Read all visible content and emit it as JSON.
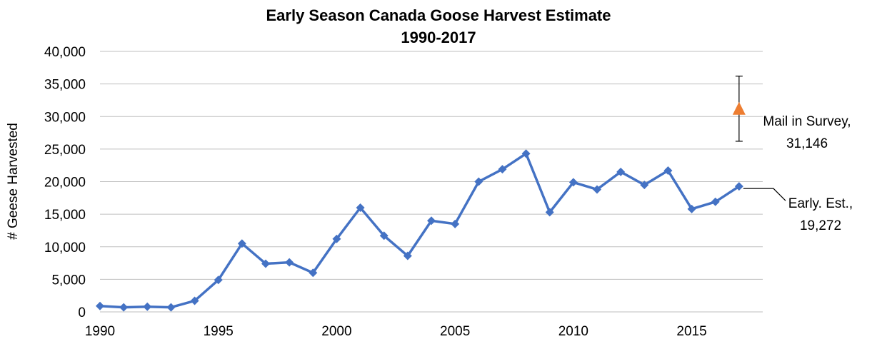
{
  "chart_data": {
    "type": "line",
    "title": "Early Season Canada Goose Harvest Estimate",
    "subtitle": "1990-2017",
    "ylabel": "# Geese Harvested",
    "xlabel": "",
    "xlim": [
      1990,
      2018
    ],
    "ylim": [
      0,
      40000
    ],
    "x_ticks": [
      1990,
      1995,
      2000,
      2005,
      2010,
      2015
    ],
    "x_tick_labels": [
      "1990",
      "1995",
      "2000",
      "2005",
      "2010",
      "2015"
    ],
    "y_ticks": [
      0,
      5000,
      10000,
      15000,
      20000,
      25000,
      30000,
      35000,
      40000
    ],
    "y_tick_labels": [
      "0",
      "5,000",
      "10,000",
      "15,000",
      "20,000",
      "25,000",
      "30,000",
      "35,000",
      "40,000"
    ],
    "grid": "horizontal",
    "series": [
      {
        "color": "#4472c4",
        "marker": "diamond",
        "x": [
          1990,
          1991,
          1992,
          1993,
          1994,
          1995,
          1996,
          1997,
          1998,
          1999,
          2000,
          2001,
          2002,
          2003,
          2004,
          2005,
          2006,
          2007,
          2008,
          2009,
          2010,
          2011,
          2012,
          2013,
          2014,
          2015,
          2016,
          2017
        ],
        "y": [
          900,
          700,
          800,
          700,
          1700,
          4900,
          10500,
          7400,
          7600,
          6000,
          11200,
          16000,
          11700,
          8600,
          14000,
          13500,
          20000,
          21900,
          24300,
          15300,
          19900,
          18800,
          21500,
          19500,
          21700,
          15800,
          16900,
          19272
        ]
      },
      {
        "color": "#ed7d31",
        "marker": "triangle",
        "x": [
          2017
        ],
        "y": [
          31146
        ],
        "error_low": [
          26200
        ],
        "error_high": [
          36200
        ]
      }
    ],
    "annotations": [
      {
        "lines": [
          "Mail in Survey,",
          "31,146"
        ]
      },
      {
        "lines": [
          "Early. Est.,",
          "19,272"
        ]
      }
    ]
  }
}
